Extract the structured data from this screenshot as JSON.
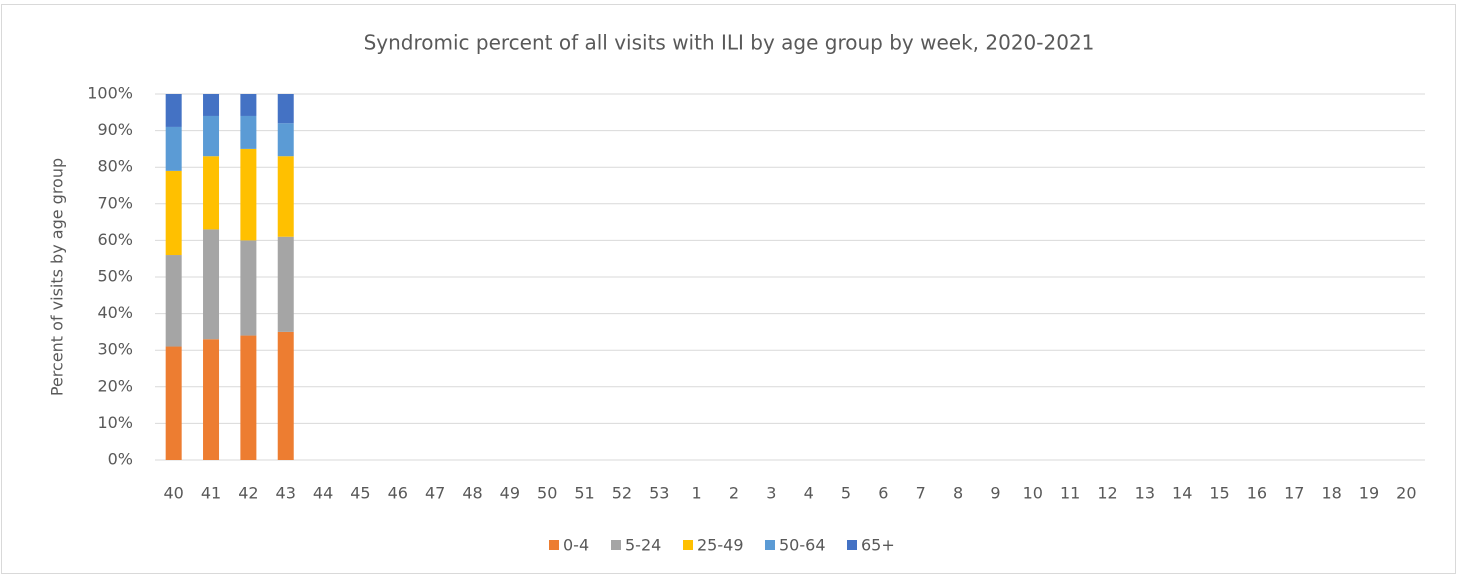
{
  "chart_data": {
    "type": "bar",
    "stacked": true,
    "title": "Syndromic percent of all visits with ILI by age group by week, 2020-2021",
    "y_label": "Percent of visits by age group",
    "categories": [
      "40",
      "41",
      "42",
      "43",
      "44",
      "45",
      "46",
      "47",
      "48",
      "49",
      "50",
      "51",
      "52",
      "53",
      "1",
      "2",
      "3",
      "4",
      "5",
      "6",
      "7",
      "8",
      "9",
      "10",
      "11",
      "12",
      "13",
      "14",
      "15",
      "16",
      "17",
      "18",
      "19",
      "20"
    ],
    "series": [
      {
        "name": "0-4",
        "color": "#ed7d31",
        "values": [
          31,
          33,
          34,
          35,
          null,
          null,
          null,
          null,
          null,
          null,
          null,
          null,
          null,
          null,
          null,
          null,
          null,
          null,
          null,
          null,
          null,
          null,
          null,
          null,
          null,
          null,
          null,
          null,
          null,
          null,
          null,
          null,
          null,
          null
        ]
      },
      {
        "name": "5-24",
        "color": "#a5a5a5",
        "values": [
          25,
          30,
          26,
          26,
          null,
          null,
          null,
          null,
          null,
          null,
          null,
          null,
          null,
          null,
          null,
          null,
          null,
          null,
          null,
          null,
          null,
          null,
          null,
          null,
          null,
          null,
          null,
          null,
          null,
          null,
          null,
          null,
          null,
          null
        ]
      },
      {
        "name": "25-49",
        "color": "#ffc000",
        "values": [
          23,
          20,
          25,
          22,
          null,
          null,
          null,
          null,
          null,
          null,
          null,
          null,
          null,
          null,
          null,
          null,
          null,
          null,
          null,
          null,
          null,
          null,
          null,
          null,
          null,
          null,
          null,
          null,
          null,
          null,
          null,
          null,
          null,
          null
        ]
      },
      {
        "name": "50-64",
        "color": "#5b9bd5",
        "values": [
          12,
          11,
          9,
          9,
          null,
          null,
          null,
          null,
          null,
          null,
          null,
          null,
          null,
          null,
          null,
          null,
          null,
          null,
          null,
          null,
          null,
          null,
          null,
          null,
          null,
          null,
          null,
          null,
          null,
          null,
          null,
          null,
          null,
          null
        ]
      },
      {
        "name": "65+",
        "color": "#4472c4",
        "values": [
          9,
          6,
          6,
          8,
          null,
          null,
          null,
          null,
          null,
          null,
          null,
          null,
          null,
          null,
          null,
          null,
          null,
          null,
          null,
          null,
          null,
          null,
          null,
          null,
          null,
          null,
          null,
          null,
          null,
          null,
          null,
          null,
          null,
          null
        ]
      }
    ],
    "ylim": [
      0,
      100
    ],
    "yticks": [
      {
        "value": 0,
        "label": "0%"
      },
      {
        "value": 10,
        "label": "10%"
      },
      {
        "value": 20,
        "label": "20%"
      },
      {
        "value": 30,
        "label": "30%"
      },
      {
        "value": 40,
        "label": "40%"
      },
      {
        "value": 50,
        "label": "50%"
      },
      {
        "value": 60,
        "label": "60%"
      },
      {
        "value": 70,
        "label": "70%"
      },
      {
        "value": 80,
        "label": "80%"
      },
      {
        "value": 90,
        "label": "90%"
      },
      {
        "value": 100,
        "label": "100%"
      }
    ],
    "grid": true,
    "legend": "bottom"
  }
}
